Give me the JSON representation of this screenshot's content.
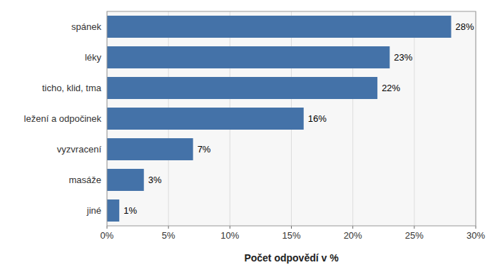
{
  "chart_data": {
    "type": "bar",
    "orientation": "horizontal",
    "categories": [
      "jiné",
      "masáže",
      "vyzvracení",
      "ležení a odpočinek",
      "ticho, klid, tma",
      "léky",
      "spánek"
    ],
    "values": [
      1,
      3,
      7,
      16,
      22,
      23,
      28
    ],
    "value_labels": [
      "1%",
      "3%",
      "7%",
      "16%",
      "22%",
      "23%",
      "28%"
    ],
    "data_labels": true,
    "color": "#4472a8",
    "xlabel": "Počet odpovědí v %",
    "xlim": [
      0,
      30
    ],
    "xticks": [
      {
        "value": 0,
        "label": "0%"
      },
      {
        "value": 5,
        "label": "5%"
      },
      {
        "value": 10,
        "label": "10%"
      },
      {
        "value": 15,
        "label": "15%"
      },
      {
        "value": 20,
        "label": "20%"
      },
      {
        "value": 25,
        "label": "25%"
      },
      {
        "value": 30,
        "label": "30%"
      }
    ],
    "grid": true
  }
}
